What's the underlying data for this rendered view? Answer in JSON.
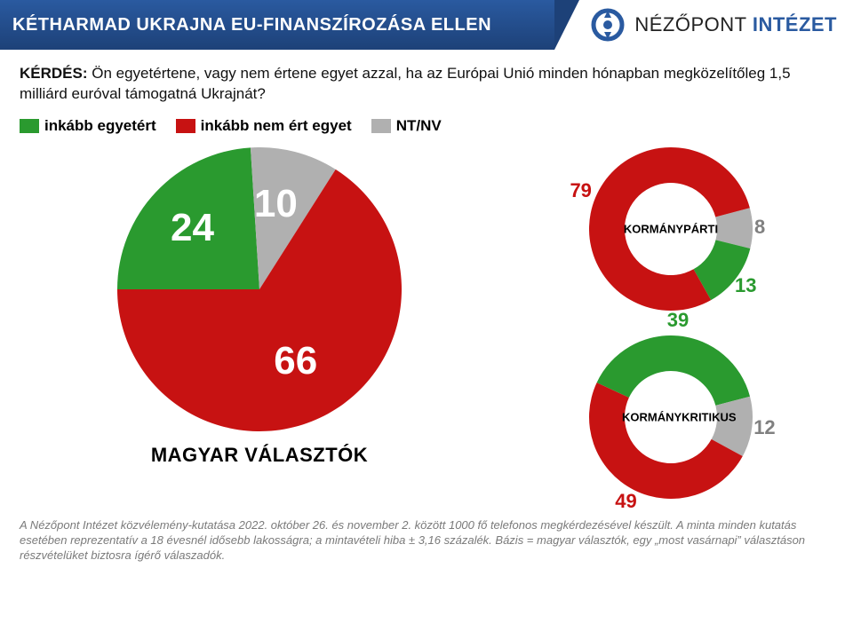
{
  "header": {
    "title": "KÉTHARMAD UKRAJNA EU-FINANSZÍROZÁSA ELLEN",
    "brand_main": "NÉZŐPONT",
    "brand_accent": "INTÉZET"
  },
  "question": {
    "label": "KÉRDÉS:",
    "text": "Ön egyetértene, vagy nem értene egyet azzal, ha az Európai Unió minden hónapban megközelítőleg 1,5 milliárd euróval támogatná Ukrajnát?"
  },
  "legend": [
    {
      "label": "inkább egyetért",
      "color": "#2a9a2f"
    },
    {
      "label": "inkább nem ért egyet",
      "color": "#c71212"
    },
    {
      "label": "NT/NV",
      "color": "#b0b0b0"
    }
  ],
  "main_pie": {
    "type": "pie",
    "caption": "MAGYAR VÁLASZTÓK",
    "radius": 160,
    "segments": [
      {
        "value": 24,
        "color": "#2a9a2f",
        "label_color": "#ffffff"
      },
      {
        "value": 10,
        "color": "#b0b0b0",
        "label_color": "#ffffff"
      },
      {
        "value": 66,
        "color": "#c71212",
        "label_color": "#ffffff"
      }
    ],
    "label_fontsize": 44,
    "start_angle_deg": -90,
    "bg": "#ffffff"
  },
  "donuts": [
    {
      "type": "donut",
      "caption": "KORMÁNYPÁRTI",
      "outer_r": 92,
      "inner_r": 52,
      "segments": [
        {
          "value": 8,
          "color": "#b0b0b0",
          "label_color": "#808080"
        },
        {
          "value": 13,
          "color": "#2a9a2f",
          "label_color": "#2a9a2f"
        },
        {
          "value": 79,
          "color": "#c71212",
          "label_color": "#c71212"
        }
      ],
      "label_fontsize": 22,
      "start_angle_deg": 75
    },
    {
      "type": "donut",
      "caption": "KORMÁNYKRITIKUS",
      "outer_r": 92,
      "inner_r": 52,
      "segments": [
        {
          "value": 39,
          "color": "#2a9a2f",
          "label_color": "#2a9a2f"
        },
        {
          "value": 12,
          "color": "#b0b0b0",
          "label_color": "#808080"
        },
        {
          "value": 49,
          "color": "#c71212",
          "label_color": "#c71212"
        }
      ],
      "label_fontsize": 22,
      "start_angle_deg": -65
    }
  ],
  "footnote": "A Nézőpont Intézet közvélemény-kutatása 2022. október 26. és november 2. között 1000 fő telefonos megkérdezésével készült. A minta minden kutatás esetében reprezentatív a 18 évesnél idősebb lakosságra; a mintavételi hiba ± 3,16 százalék. Bázis = magyar választók, egy „most vasárnapi” választáson részvételüket biztosra ígérő válaszadók."
}
